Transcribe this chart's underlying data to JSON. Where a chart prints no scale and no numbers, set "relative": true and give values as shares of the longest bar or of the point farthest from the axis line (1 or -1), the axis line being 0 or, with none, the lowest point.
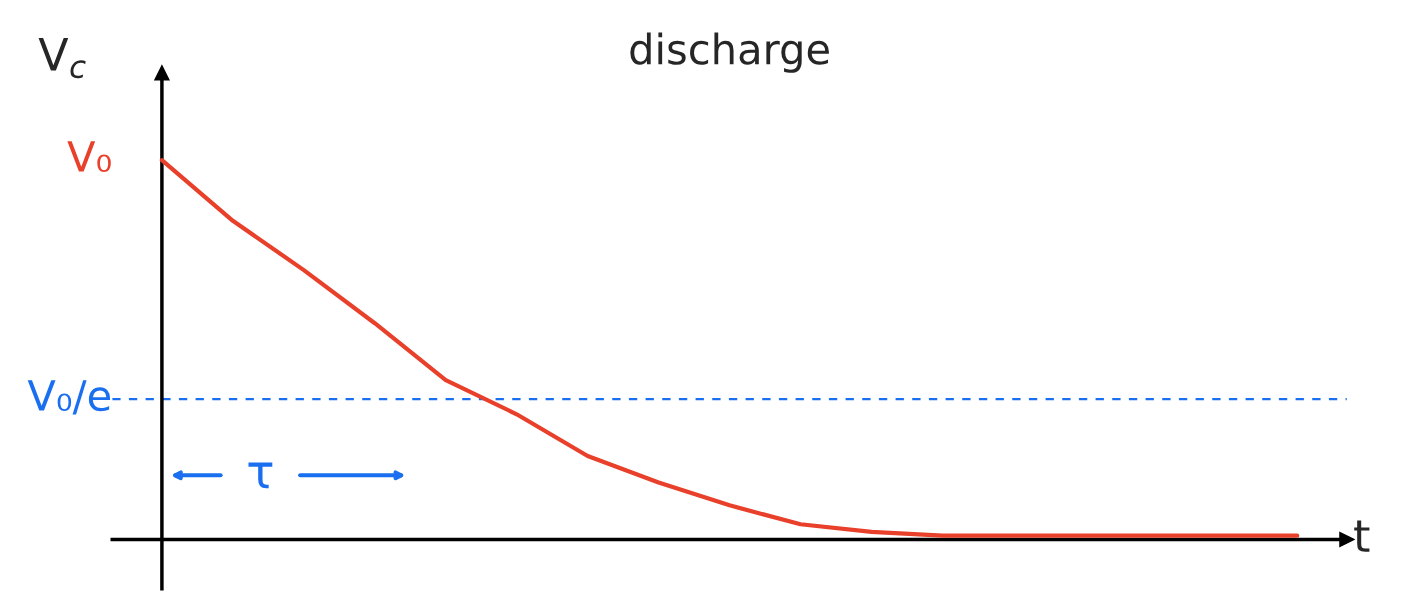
{
  "chart_data": {
    "type": "line",
    "title": "discharge",
    "xlabel": "t",
    "ylabel": "V$_{c}$",
    "categories": [
      null,
      null,
      null,
      null,
      null,
      null,
      null,
      null,
      null,
      null,
      null,
      null,
      null,
      null,
      null,
      null,
      null
    ],
    "series": [
      {
        "color": "#e8402a",
        "values": [
          1.0,
          0.84,
          0.71,
          0.57,
          0.42,
          0.33,
          0.22,
          0.15,
          0.09,
          0.04,
          0.02,
          0.01,
          0.01,
          0.01,
          0.01,
          0.01,
          0.01
        ]
      }
    ],
    "relative": true,
    "ref_lines": [
      {
        "axis": "y",
        "value": 0.37,
        "label": "V₀/e",
        "color": "#1a6ff0",
        "line_style": "dashed"
      }
    ],
    "annotations": [
      "V₀",
      "τ"
    ]
  }
}
